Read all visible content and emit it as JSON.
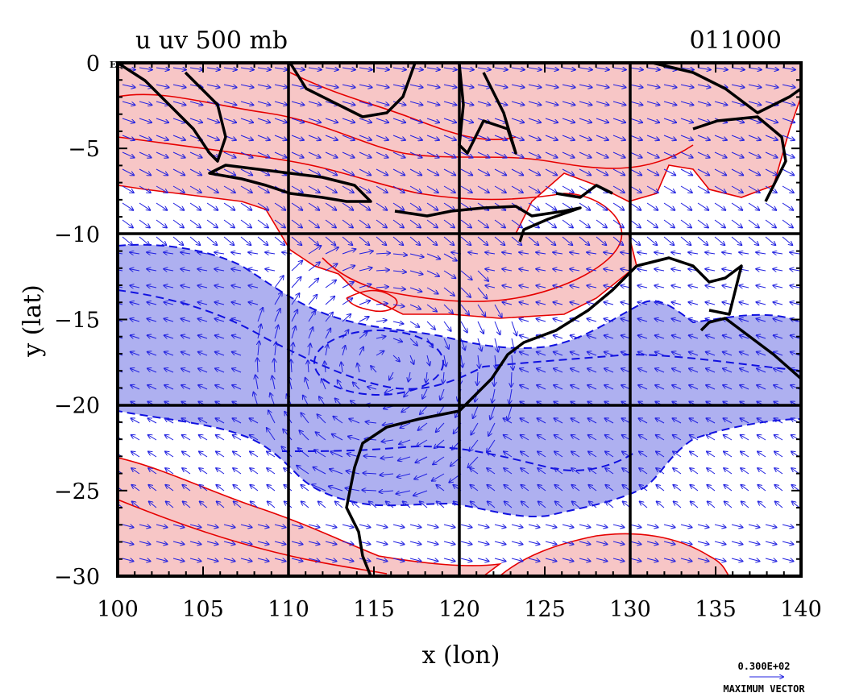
{
  "title": {
    "left": "u uv 500 mb",
    "right": "011000"
  },
  "axes": {
    "xlabel": "x (lon)",
    "ylabel": "y (lat)",
    "equator_tag": "EQ",
    "xlim": [
      100,
      140
    ],
    "ylim": [
      -30,
      0
    ],
    "xticks": [
      100,
      105,
      110,
      115,
      120,
      125,
      130,
      135,
      140
    ],
    "yticks": [
      0,
      -5,
      -10,
      -15,
      -20,
      -25,
      -30
    ],
    "grid_lines_x": [
      110,
      120,
      130
    ],
    "grid_lines_y": [
      -10,
      -20
    ]
  },
  "vector_key": {
    "magnitude": "0.300E+02",
    "label": "MAXIMUM VECTOR"
  },
  "colors": {
    "positive_fill": "#f7c6c6",
    "positive_line": "#e60000",
    "negative_fill": "#aeb0f0",
    "negative_line": "#1010e0",
    "coast": "#000000",
    "vectors": "#2020e0"
  },
  "chart_data": {
    "type": "map",
    "field": "u-wind with wind vectors at 500 mb",
    "region": {
      "lon": [
        100,
        140
      ],
      "lat": [
        -30,
        0
      ]
    },
    "features": [
      {
        "kind": "positive-u (easterly-shaded red)",
        "lon": [
          100,
          140
        ],
        "lat": [
          -14.5,
          0
        ]
      },
      {
        "kind": "negative-u (shaded blue)",
        "lon": [
          100,
          140
        ],
        "lat": [
          -26,
          -11
        ]
      },
      {
        "kind": "positive-u (shaded red)",
        "lon": [
          100,
          122
        ],
        "lat": [
          -30,
          -26
        ]
      },
      {
        "kind": "positive-u (shaded red)",
        "lon": [
          124,
          135
        ],
        "lat": [
          -30,
          -27
        ]
      }
    ]
  }
}
